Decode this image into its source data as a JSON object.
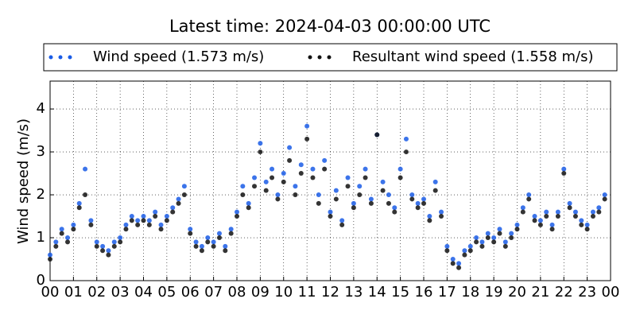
{
  "chart_data": {
    "type": "scatter",
    "title": "Latest time: 2024-04-03 00:00:00 UTC",
    "y_label": "Wind speed (m/s)",
    "x": [
      0,
      0.25,
      0.5,
      0.75,
      1,
      1.25,
      1.5,
      1.75,
      2,
      2.25,
      2.5,
      2.75,
      3,
      3.25,
      3.5,
      3.75,
      4,
      4.25,
      4.5,
      4.75,
      5,
      5.25,
      5.5,
      5.75,
      6,
      6.25,
      6.5,
      6.75,
      7,
      7.25,
      7.5,
      7.75,
      8,
      8.25,
      8.5,
      8.75,
      9,
      9.25,
      9.5,
      9.75,
      10,
      10.25,
      10.5,
      10.75,
      11,
      11.25,
      11.5,
      11.75,
      12,
      12.25,
      12.5,
      12.75,
      13,
      13.25,
      13.5,
      13.75,
      14,
      14.25,
      14.5,
      14.75,
      15,
      15.25,
      15.5,
      15.75,
      16,
      16.25,
      16.5,
      16.75,
      17,
      17.25,
      17.5,
      17.75,
      18,
      18.25,
      18.5,
      18.75,
      19,
      19.25,
      19.5,
      19.75,
      20,
      20.25,
      20.5,
      20.75,
      21,
      21.25,
      21.5,
      21.75,
      22,
      22.25,
      22.5,
      22.75,
      23,
      23.25,
      23.5,
      23.75
    ],
    "series": [
      {
        "name": "Wind speed (1.573 m/s)",
        "color": "#1a5ce6",
        "values": [
          0.6,
          0.9,
          1.2,
          1.0,
          1.3,
          1.8,
          2.6,
          1.4,
          0.9,
          0.8,
          0.7,
          0.9,
          1.0,
          1.3,
          1.5,
          1.4,
          1.5,
          1.4,
          1.6,
          1.3,
          1.5,
          1.7,
          1.9,
          2.2,
          1.2,
          0.9,
          0.8,
          1.0,
          0.9,
          1.1,
          0.8,
          1.2,
          1.6,
          2.2,
          1.8,
          2.4,
          3.2,
          2.3,
          2.6,
          2.0,
          2.5,
          3.1,
          2.2,
          2.7,
          3.6,
          2.6,
          2.0,
          2.8,
          1.6,
          2.1,
          1.4,
          2.4,
          1.8,
          2.2,
          2.6,
          1.9,
          3.4,
          2.3,
          2.0,
          1.7,
          2.6,
          3.3,
          2.0,
          1.8,
          1.9,
          1.5,
          2.3,
          1.6,
          0.8,
          0.5,
          0.4,
          0.7,
          0.8,
          1.0,
          0.9,
          1.1,
          1.0,
          1.2,
          0.9,
          1.1,
          1.3,
          1.7,
          2.0,
          1.5,
          1.4,
          1.6,
          1.3,
          1.6,
          2.6,
          1.8,
          1.6,
          1.4,
          1.3,
          1.6,
          1.7,
          2.0
        ]
      },
      {
        "name": "Resultant wind speed (1.558 m/s)",
        "color": "#111111",
        "values": [
          0.5,
          0.8,
          1.1,
          0.9,
          1.2,
          1.7,
          2.0,
          1.3,
          0.8,
          0.7,
          0.6,
          0.8,
          0.9,
          1.2,
          1.4,
          1.3,
          1.4,
          1.3,
          1.5,
          1.2,
          1.4,
          1.6,
          1.8,
          2.0,
          1.1,
          0.8,
          0.7,
          0.9,
          0.8,
          1.0,
          0.7,
          1.1,
          1.5,
          2.0,
          1.7,
          2.2,
          3.0,
          2.1,
          2.4,
          1.9,
          2.3,
          2.8,
          2.0,
          2.5,
          3.3,
          2.4,
          1.8,
          2.6,
          1.5,
          1.9,
          1.3,
          2.2,
          1.7,
          2.0,
          2.4,
          1.8,
          3.4,
          2.1,
          1.8,
          1.6,
          2.4,
          3.0,
          1.9,
          1.7,
          1.8,
          1.4,
          2.1,
          1.5,
          0.7,
          0.4,
          0.3,
          0.6,
          0.7,
          0.9,
          0.8,
          1.0,
          0.9,
          1.1,
          0.8,
          1.0,
          1.2,
          1.6,
          1.9,
          1.4,
          1.3,
          1.5,
          1.2,
          1.5,
          2.5,
          1.7,
          1.5,
          1.3,
          1.2,
          1.5,
          1.6,
          1.9
        ]
      }
    ],
    "xlim": [
      0,
      24
    ],
    "xticks": [
      {
        "value": 0,
        "label": "00"
      },
      {
        "value": 1,
        "label": "01"
      },
      {
        "value": 2,
        "label": "02"
      },
      {
        "value": 3,
        "label": "03"
      },
      {
        "value": 4,
        "label": "04"
      },
      {
        "value": 5,
        "label": "05"
      },
      {
        "value": 6,
        "label": "06"
      },
      {
        "value": 7,
        "label": "07"
      },
      {
        "value": 8,
        "label": "08"
      },
      {
        "value": 9,
        "label": "09"
      },
      {
        "value": 10,
        "label": "10"
      },
      {
        "value": 11,
        "label": "11"
      },
      {
        "value": 12,
        "label": "12"
      },
      {
        "value": 13,
        "label": "13"
      },
      {
        "value": 14,
        "label": "14"
      },
      {
        "value": 15,
        "label": "15"
      },
      {
        "value": 16,
        "label": "16"
      },
      {
        "value": 17,
        "label": "17"
      },
      {
        "value": 18,
        "label": "18"
      },
      {
        "value": 19,
        "label": "19"
      },
      {
        "value": 20,
        "label": "20"
      },
      {
        "value": 21,
        "label": "21"
      },
      {
        "value": 22,
        "label": "22"
      },
      {
        "value": 23,
        "label": "23"
      },
      {
        "value": 24,
        "label": "00"
      }
    ],
    "ylim": [
      0,
      4.65
    ],
    "yticks": [
      0,
      1,
      2,
      3,
      4
    ],
    "grid": true,
    "legend": "top"
  }
}
